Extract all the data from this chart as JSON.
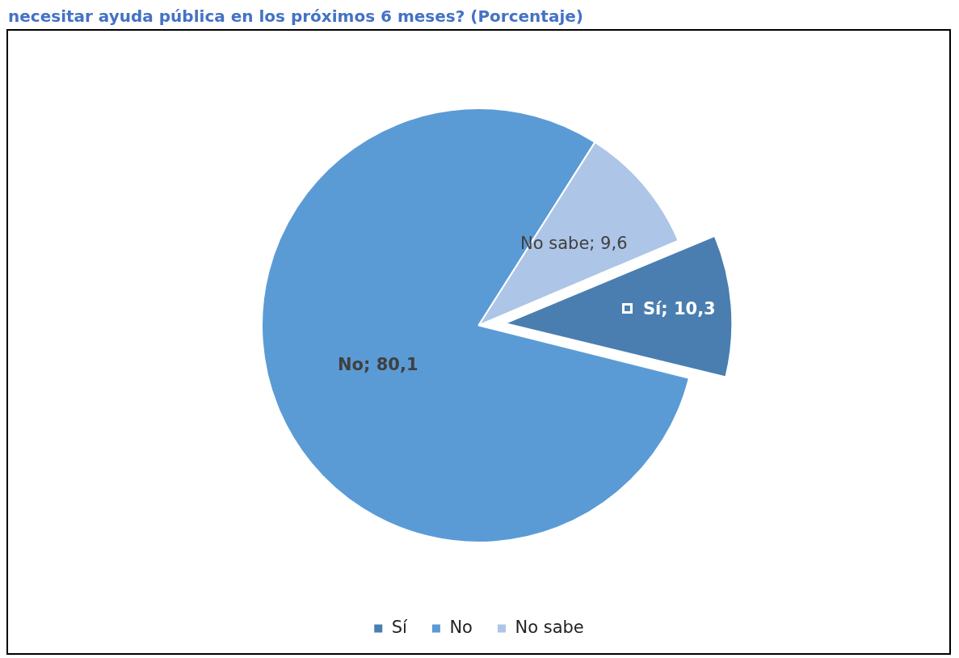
{
  "chart_data": {
    "type": "pie",
    "title": "necesitar ayuda pública en los próximos 6 meses? (Porcentaje)",
    "categories": [
      "Sí",
      "No",
      "No sabe"
    ],
    "values": [
      10.3,
      80.1,
      9.6
    ],
    "colors": [
      "#4a7eb0",
      "#5b9bd5",
      "#adc5e6"
    ],
    "value_labels": [
      "Sí; 10,3",
      "No; 80,1",
      "No sabe; 9,6"
    ],
    "legend": "bottom"
  }
}
